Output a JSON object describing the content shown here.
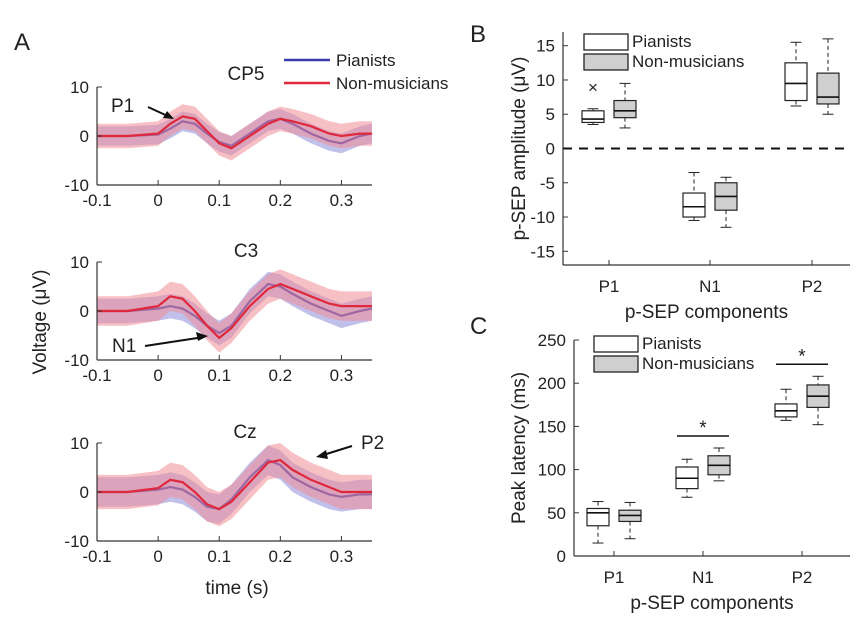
{
  "panel_labels": {
    "a": "A",
    "b": "B",
    "c": "C"
  },
  "colors": {
    "pianists": "#3b3bb0",
    "non_musicians": "#e0283c",
    "pianists_band": "#8c8cd8",
    "non_musicians_band": "#f08c96",
    "box_fill_nm": "#cfcfcf"
  },
  "chart_data": [
    {
      "id": "A",
      "type": "line",
      "title": "CP5 / C3 / Cz",
      "xlabel": "time (s)",
      "ylabel": "Voltage (μV)",
      "xlim": [
        -0.1,
        0.35
      ],
      "ylim": [
        -10,
        10
      ],
      "xticks": [
        -0.1,
        0,
        0.1,
        0.2,
        0.3
      ],
      "xtick_labels": [
        "-0.1",
        "0",
        "0.1",
        "0.2",
        "0.3"
      ],
      "yticks": [
        -10,
        0,
        10
      ],
      "ytick_labels": [
        "-10",
        "0",
        "10"
      ],
      "legend": [
        "Pianists",
        "Non-musicians"
      ],
      "subplots": [
        {
          "channel": "CP5",
          "annotation": "P1",
          "series": [
            {
              "name": "Pianists",
              "x": [
                -0.1,
                -0.05,
                0,
                0.02,
                0.04,
                0.06,
                0.08,
                0.1,
                0.12,
                0.15,
                0.18,
                0.2,
                0.22,
                0.25,
                0.28,
                0.3,
                0.33,
                0.35
              ],
              "y": [
                0,
                0,
                0.3,
                1.5,
                3,
                2.5,
                0.5,
                -1.2,
                -2,
                0.5,
                3,
                3.5,
                2.5,
                0.5,
                -1,
                -1.5,
                0,
                0.5
              ],
              "band": 2
            },
            {
              "name": "Non-musicians",
              "x": [
                -0.1,
                -0.05,
                0,
                0.02,
                0.04,
                0.06,
                0.08,
                0.1,
                0.12,
                0.15,
                0.18,
                0.2,
                0.22,
                0.25,
                0.28,
                0.3,
                0.33,
                0.35
              ],
              "y": [
                0,
                0,
                0.5,
                2.5,
                4,
                3.5,
                1,
                -1.5,
                -2.5,
                0,
                2.5,
                3.5,
                3,
                2,
                0.5,
                0,
                0.5,
                0.5
              ],
              "band": 2.5
            }
          ]
        },
        {
          "channel": "C3",
          "annotation": "N1",
          "series": [
            {
              "name": "Pianists",
              "x": [
                -0.1,
                -0.05,
                0,
                0.02,
                0.04,
                0.06,
                0.08,
                0.1,
                0.12,
                0.15,
                0.18,
                0.2,
                0.22,
                0.25,
                0.28,
                0.3,
                0.33,
                0.35
              ],
              "y": [
                0,
                0,
                0.5,
                1,
                0.5,
                -1,
                -3,
                -4.5,
                -3,
                2,
                5.5,
                5,
                3.5,
                1.5,
                0,
                -1,
                0,
                0.5
              ],
              "band": 2.5
            },
            {
              "name": "Non-musicians",
              "x": [
                -0.1,
                -0.05,
                0,
                0.02,
                0.04,
                0.06,
                0.08,
                0.1,
                0.12,
                0.15,
                0.18,
                0.2,
                0.22,
                0.25,
                0.28,
                0.3,
                0.33,
                0.35
              ],
              "y": [
                0,
                0,
                1,
                3,
                2.5,
                0,
                -3,
                -5.5,
                -3.5,
                1,
                4.5,
                5.5,
                4.5,
                3,
                1.5,
                1,
                1,
                1
              ],
              "band": 3
            }
          ]
        },
        {
          "channel": "Cz",
          "annotation": "P2",
          "series": [
            {
              "name": "Pianists",
              "x": [
                -0.1,
                -0.05,
                0,
                0.02,
                0.04,
                0.06,
                0.08,
                0.1,
                0.12,
                0.15,
                0.18,
                0.2,
                0.22,
                0.25,
                0.28,
                0.3,
                0.33,
                0.35
              ],
              "y": [
                0,
                0,
                0.5,
                1,
                0.5,
                -1,
                -3,
                -3.5,
                -1.5,
                3,
                6.5,
                5.5,
                3,
                1,
                -0.5,
                -1,
                -0.5,
                -0.5
              ],
              "band": 3
            },
            {
              "name": "Non-musicians",
              "x": [
                -0.1,
                -0.05,
                0,
                0.02,
                0.04,
                0.06,
                0.08,
                0.1,
                0.12,
                0.15,
                0.18,
                0.2,
                0.22,
                0.25,
                0.28,
                0.3,
                0.33,
                0.35
              ],
              "y": [
                0,
                0,
                0.8,
                2.5,
                2,
                0,
                -2.5,
                -3.5,
                -2,
                2,
                6,
                6.5,
                4.5,
                2.5,
                1,
                0,
                0,
                0
              ],
              "band": 3.5
            }
          ]
        }
      ]
    },
    {
      "id": "B",
      "type": "box",
      "xlabel": "p-SEP components",
      "ylabel": "p-SEP amplitude (μV)",
      "categories": [
        "P1",
        "N1",
        "P2"
      ],
      "ylim": [
        -17,
        17
      ],
      "yticks": [
        -15,
        -10,
        -5,
        0,
        5,
        10,
        15
      ],
      "ytick_labels": [
        "-15",
        "-10",
        "-5",
        "0",
        "5",
        "10",
        "15"
      ],
      "zero_line": true,
      "legend": [
        "Pianists",
        "Non-musicians"
      ],
      "series": [
        {
          "name": "Pianists",
          "boxes": [
            {
              "whisker_low": 3.5,
              "q1": 3.8,
              "median": 4.3,
              "q3": 5.5,
              "whisker_high": 5.8,
              "outliers": [
                9
              ]
            },
            {
              "whisker_low": -10.5,
              "q1": -10,
              "median": -8.5,
              "q3": -6.5,
              "whisker_high": -3.5,
              "outliers": []
            },
            {
              "whisker_low": 6.2,
              "q1": 7,
              "median": 9.5,
              "q3": 12.5,
              "whisker_high": 15.5,
              "outliers": []
            }
          ]
        },
        {
          "name": "Non-musicians",
          "boxes": [
            {
              "whisker_low": 3,
              "q1": 4.5,
              "median": 5.5,
              "q3": 7,
              "whisker_high": 9.5,
              "outliers": []
            },
            {
              "whisker_low": -11.5,
              "q1": -9,
              "median": -7,
              "q3": -5,
              "whisker_high": -4.2,
              "outliers": []
            },
            {
              "whisker_low": 5,
              "q1": 6.5,
              "median": 7.5,
              "q3": 11,
              "whisker_high": 16,
              "outliers": []
            }
          ]
        }
      ]
    },
    {
      "id": "C",
      "type": "box",
      "xlabel": "p-SEP components",
      "ylabel": "Peak latency (ms)",
      "categories": [
        "P1",
        "N1",
        "P2"
      ],
      "ylim": [
        0,
        250
      ],
      "yticks": [
        0,
        50,
        100,
        150,
        200,
        250
      ],
      "ytick_labels": [
        "0",
        "50",
        "100",
        "150",
        "200",
        "250"
      ],
      "legend": [
        "Pianists",
        "Non-musicians"
      ],
      "significance": [
        {
          "category": "N1",
          "label": "*"
        },
        {
          "category": "P2",
          "label": "*"
        }
      ],
      "series": [
        {
          "name": "Pianists",
          "boxes": [
            {
              "whisker_low": 15,
              "q1": 35,
              "median": 50,
              "q3": 55,
              "whisker_high": 63,
              "outliers": []
            },
            {
              "whisker_low": 68,
              "q1": 78,
              "median": 90,
              "q3": 103,
              "whisker_high": 112,
              "outliers": []
            },
            {
              "whisker_low": 157,
              "q1": 161,
              "median": 168,
              "q3": 176,
              "whisker_high": 193,
              "outliers": []
            }
          ]
        },
        {
          "name": "Non-musicians",
          "boxes": [
            {
              "whisker_low": 20,
              "q1": 40,
              "median": 47,
              "q3": 53,
              "whisker_high": 62,
              "outliers": []
            },
            {
              "whisker_low": 87,
              "q1": 94,
              "median": 105,
              "q3": 116,
              "whisker_high": 125,
              "outliers": []
            },
            {
              "whisker_low": 152,
              "q1": 172,
              "median": 185,
              "q3": 198,
              "whisker_high": 208,
              "outliers": []
            }
          ]
        }
      ]
    }
  ]
}
